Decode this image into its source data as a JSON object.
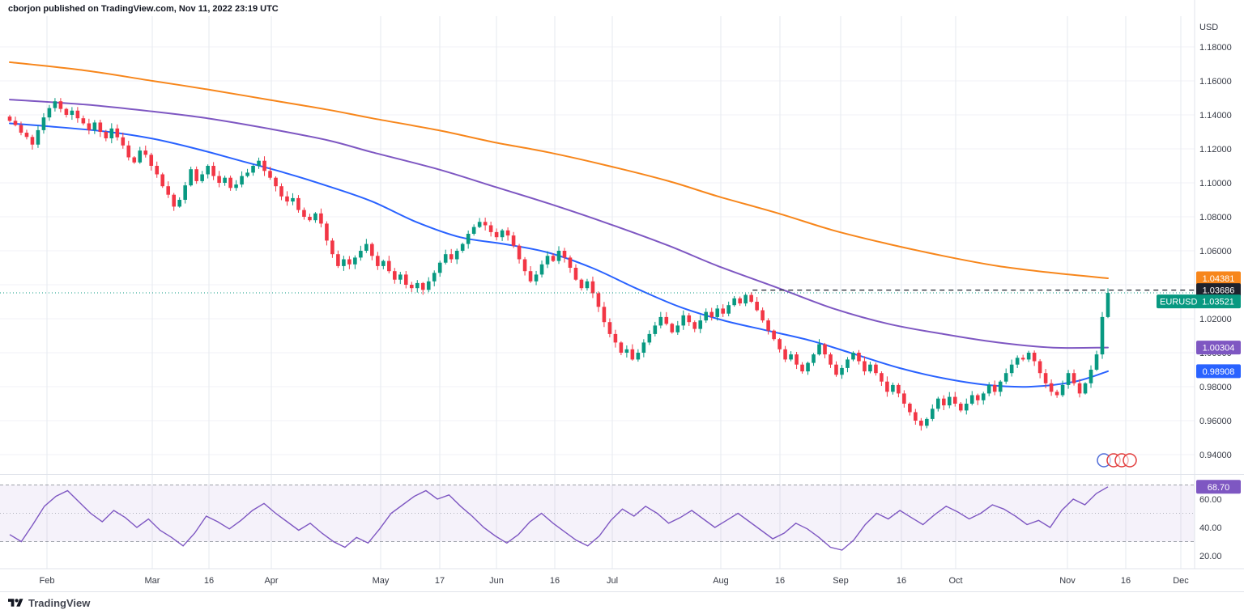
{
  "attribution": "cborjon published on TradingView.com, Nov 11, 2022 23:19 UTC",
  "footer": {
    "brand": "TradingView"
  },
  "chart_data": {
    "type": "candlestick",
    "symbol": "EURUSD",
    "last_price": 1.03521,
    "colors": {
      "up": "#089981",
      "down": "#f23645"
    },
    "y_axis": {
      "unit": "USD",
      "tick_max": 1.18,
      "tick_min": 0.94,
      "tick_step": 0.02,
      "labels": [
        "1.18000",
        "1.16000",
        "1.14000",
        "1.12000",
        "1.10000",
        "1.08000",
        "1.06000",
        "1.04000",
        "1.02000",
        "1.00000",
        "0.98000",
        "0.96000",
        "0.94000"
      ]
    },
    "x_ticks": [
      {
        "label": "Feb",
        "px": 58
      },
      {
        "label": "Mar",
        "px": 188
      },
      {
        "label": "16",
        "px": 258
      },
      {
        "label": "Apr",
        "px": 335
      },
      {
        "label": "May",
        "px": 470
      },
      {
        "label": "17",
        "px": 543
      },
      {
        "label": "Jun",
        "px": 613
      },
      {
        "label": "16",
        "px": 685
      },
      {
        "label": "Jul",
        "px": 756
      },
      {
        "label": "Aug",
        "px": 890
      },
      {
        "label": "16",
        "px": 963
      },
      {
        "label": "Sep",
        "px": 1038
      },
      {
        "label": "16",
        "px": 1113
      },
      {
        "label": "Oct",
        "px": 1180
      },
      {
        "label": "Nov",
        "px": 1318
      },
      {
        "label": "16",
        "px": 1390
      },
      {
        "label": "Dec",
        "px": 1458
      }
    ],
    "closes": [
      1.1365,
      1.134,
      1.1295,
      1.127,
      1.1225,
      1.131,
      1.1385,
      1.144,
      1.148,
      1.1435,
      1.14,
      1.1425,
      1.138,
      1.135,
      1.131,
      1.1355,
      1.13,
      1.1262,
      1.132,
      1.1268,
      1.122,
      1.115,
      1.112,
      1.119,
      1.1165,
      1.11,
      1.105,
      1.098,
      1.093,
      1.086,
      1.09,
      1.0985,
      1.108,
      1.101,
      1.105,
      1.11,
      1.104,
      1.1,
      1.103,
      1.097,
      1.099,
      1.104,
      1.106,
      1.11,
      1.113,
      1.107,
      1.103,
      1.098,
      1.092,
      1.089,
      1.091,
      1.084,
      1.08,
      1.078,
      1.082,
      1.076,
      1.066,
      1.058,
      1.051,
      1.055,
      1.052,
      1.056,
      1.06,
      1.064,
      1.057,
      1.051,
      1.054,
      1.048,
      1.043,
      1.046,
      1.04,
      1.038,
      1.041,
      1.037,
      1.042,
      1.047,
      1.053,
      1.058,
      1.055,
      1.06,
      1.064,
      1.07,
      1.074,
      1.077,
      1.075,
      1.071,
      1.068,
      1.072,
      1.069,
      1.063,
      1.055,
      1.048,
      1.042,
      1.046,
      1.052,
      1.057,
      1.054,
      1.06,
      1.056,
      1.05,
      1.043,
      1.038,
      1.042,
      1.035,
      1.027,
      1.018,
      1.011,
      1.006,
      1.0,
      1.002,
      0.996,
      1.0,
      1.006,
      1.011,
      1.016,
      1.021,
      1.017,
      1.012,
      1.016,
      1.022,
      1.018,
      1.014,
      1.019,
      1.024,
      1.021,
      1.026,
      1.023,
      1.028,
      1.032,
      1.029,
      1.034,
      1.03,
      1.025,
      1.019,
      1.013,
      1.008,
      1.002,
      0.996,
      0.999,
      0.993,
      0.989,
      0.994,
      0.999,
      1.005,
      0.999,
      0.993,
      0.987,
      0.991,
      0.996,
      1.0,
      0.995,
      0.989,
      0.993,
      0.988,
      0.983,
      0.977,
      0.981,
      0.976,
      0.97,
      0.965,
      0.96,
      0.957,
      0.961,
      0.967,
      0.973,
      0.969,
      0.974,
      0.97,
      0.966,
      0.97,
      0.975,
      0.972,
      0.976,
      0.981,
      0.977,
      0.983,
      0.988,
      0.993,
      0.997,
      0.996,
      1.0,
      0.995,
      0.988,
      0.982,
      0.977,
      0.975,
      0.981,
      0.988,
      0.982,
      0.976,
      0.982,
      0.99,
      0.999,
      1.021,
      1.0352
    ],
    "overlays": [
      {
        "id": "sma-200",
        "color": "#f7861b",
        "points": [
          [
            0,
            1.171
          ],
          [
            0.07,
            1.166
          ],
          [
            0.13,
            1.16
          ],
          [
            0.18,
            1.155
          ],
          [
            0.235,
            1.149
          ],
          [
            0.29,
            1.143
          ],
          [
            0.33,
            1.138
          ],
          [
            0.39,
            1.131
          ],
          [
            0.44,
            1.124
          ],
          [
            0.49,
            1.118
          ],
          [
            0.545,
            1.11
          ],
          [
            0.6,
            1.101
          ],
          [
            0.645,
            1.092
          ],
          [
            0.7,
            1.082
          ],
          [
            0.75,
            1.072
          ],
          [
            0.8,
            1.064
          ],
          [
            0.85,
            1.057
          ],
          [
            0.9,
            1.051
          ],
          [
            0.95,
            1.047
          ],
          [
            1.0,
            1.04381
          ]
        ]
      },
      {
        "id": "sma-100",
        "color": "#7e57c2",
        "points": [
          [
            0,
            1.149
          ],
          [
            0.07,
            1.146
          ],
          [
            0.13,
            1.142
          ],
          [
            0.18,
            1.138
          ],
          [
            0.235,
            1.132
          ],
          [
            0.29,
            1.125
          ],
          [
            0.33,
            1.118
          ],
          [
            0.39,
            1.108
          ],
          [
            0.44,
            1.098
          ],
          [
            0.49,
            1.088
          ],
          [
            0.545,
            1.076
          ],
          [
            0.6,
            1.063
          ],
          [
            0.645,
            1.051
          ],
          [
            0.7,
            1.038
          ],
          [
            0.75,
            1.026
          ],
          [
            0.8,
            1.017
          ],
          [
            0.85,
            1.011
          ],
          [
            0.9,
            1.006
          ],
          [
            0.95,
            1.003
          ],
          [
            1.0,
            1.00304
          ]
        ]
      },
      {
        "id": "sma-50",
        "color": "#2962ff",
        "points": [
          [
            0,
            1.135
          ],
          [
            0.04,
            1.133
          ],
          [
            0.09,
            1.13
          ],
          [
            0.13,
            1.126
          ],
          [
            0.17,
            1.12
          ],
          [
            0.21,
            1.113
          ],
          [
            0.25,
            1.106
          ],
          [
            0.29,
            1.098
          ],
          [
            0.33,
            1.089
          ],
          [
            0.37,
            1.077
          ],
          [
            0.41,
            1.068
          ],
          [
            0.45,
            1.064
          ],
          [
            0.49,
            1.059
          ],
          [
            0.53,
            1.05
          ],
          [
            0.57,
            1.038
          ],
          [
            0.61,
            1.027
          ],
          [
            0.65,
            1.019
          ],
          [
            0.69,
            1.013
          ],
          [
            0.73,
            1.007
          ],
          [
            0.77,
            0.999
          ],
          [
            0.81,
            0.991
          ],
          [
            0.85,
            0.985
          ],
          [
            0.89,
            0.981
          ],
          [
            0.93,
            0.98
          ],
          [
            0.97,
            0.983
          ],
          [
            1.0,
            0.98908
          ]
        ]
      }
    ],
    "levels": [
      {
        "name": "prior-high-dashed-line",
        "value": 1.03686,
        "style": "dashed",
        "color": "#1e222d",
        "from_frac": 0.63
      },
      {
        "name": "last-price-dotted-line",
        "value": 1.03521,
        "style": "dotted",
        "color": "#089981",
        "from_frac": 0
      }
    ],
    "price_tags": [
      {
        "text": "1.04381",
        "color": "#f7861b",
        "value": 1.04381
      },
      {
        "text": "1.03686",
        "color": "#1e222d",
        "value": 1.03686
      },
      {
        "text": "1.03521",
        "color": "#089981",
        "value": 1.03521,
        "prefix": "EURUSD"
      },
      {
        "text": "1.00304",
        "color": "#7e57c2",
        "value": 1.00304
      },
      {
        "text": "0.98908",
        "color": "#2962ff",
        "value": 0.98908
      }
    ],
    "rsi": {
      "color": "#7e57c2",
      "last_value": 68.7,
      "value_label": "68.70",
      "bands": {
        "upper": 70,
        "middle": 50,
        "lower": 30
      },
      "axis_labels": [
        {
          "label": "60.00",
          "value": 60
        },
        {
          "label": "40.00",
          "value": 40
        },
        {
          "label": "20.00",
          "value": 20
        }
      ],
      "values": [
        35,
        30,
        42,
        55,
        62,
        66,
        58,
        50,
        44,
        52,
        47,
        40,
        46,
        38,
        33,
        27,
        36,
        48,
        44,
        39,
        45,
        52,
        57,
        50,
        44,
        38,
        43,
        36,
        30,
        26,
        33,
        29,
        39,
        50,
        56,
        62,
        66,
        60,
        63,
        55,
        48,
        40,
        34,
        29,
        35,
        44,
        50,
        43,
        37,
        31,
        27,
        34,
        45,
        53,
        48,
        55,
        50,
        43,
        47,
        52,
        46,
        40,
        45,
        50,
        44,
        38,
        32,
        36,
        43,
        39,
        33,
        26,
        24,
        31,
        42,
        50,
        46,
        52,
        47,
        42,
        49,
        55,
        51,
        46,
        50,
        56,
        53,
        48,
        42,
        45,
        40,
        52,
        60,
        56,
        64,
        68.7
      ]
    }
  }
}
